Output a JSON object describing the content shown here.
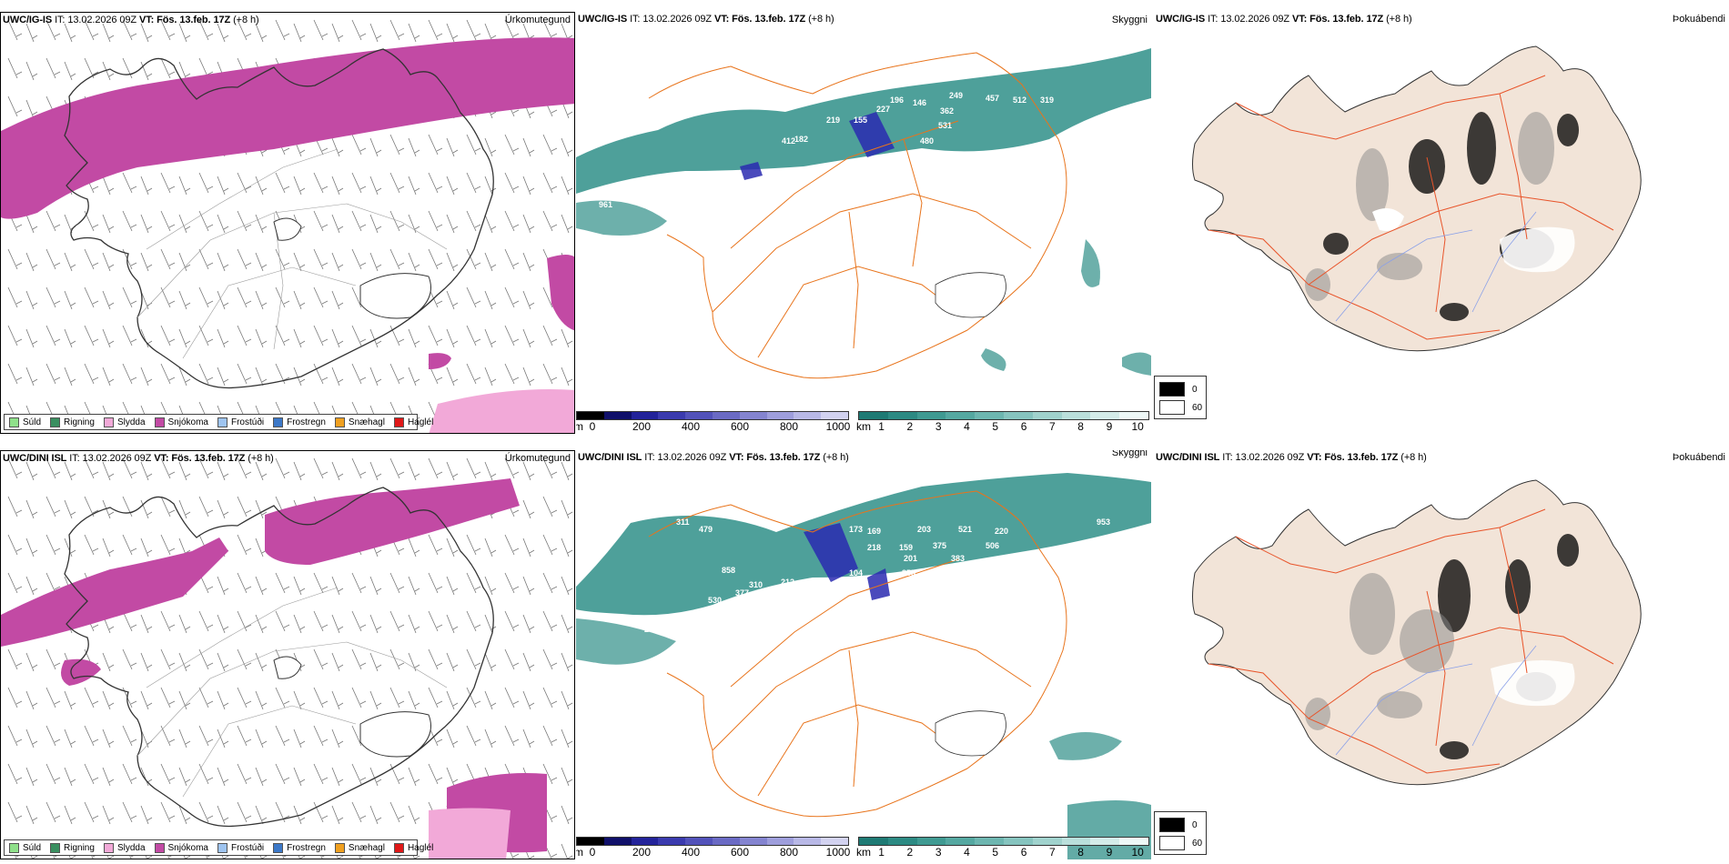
{
  "rows": [
    {
      "model": "UWC/IG-IS",
      "it_label": "IT:",
      "it_value": "13.02.2026 09Z",
      "vt_label": "VT:",
      "vt_value": "Fös. 13.feb. 17Z",
      "lead": "(+8 h)",
      "values": [
        {
          "t": "249"
        },
        {
          "t": "457"
        },
        {
          "t": "512"
        },
        {
          "t": "319"
        },
        {
          "t": "196"
        },
        {
          "t": "146"
        },
        {
          "t": "362"
        },
        {
          "t": "227"
        },
        {
          "t": "155"
        },
        {
          "t": "219"
        },
        {
          "t": "531"
        },
        {
          "t": "480"
        },
        {
          "t": "182"
        },
        {
          "t": "412"
        },
        {
          "t": "189"
        },
        {
          "t": "531"
        },
        {
          "t": "961"
        },
        {
          "t": "150"
        }
      ]
    },
    {
      "model": "UWC/DINI ISL",
      "it_label": "IT:",
      "it_value": "13.02.2026 09Z",
      "vt_label": "VT:",
      "vt_value": "Fös. 13.feb. 17Z",
      "lead": "(+8 h)",
      "values": [
        {
          "t": "623"
        },
        {
          "t": "311"
        },
        {
          "t": "479"
        },
        {
          "t": "173"
        },
        {
          "t": "169"
        },
        {
          "t": "203"
        },
        {
          "t": "521"
        },
        {
          "t": "220"
        },
        {
          "t": "218"
        },
        {
          "t": "159"
        },
        {
          "t": "375"
        },
        {
          "t": "201"
        },
        {
          "t": "383"
        },
        {
          "t": "506"
        },
        {
          "t": "355"
        },
        {
          "t": "104"
        },
        {
          "t": "858"
        },
        {
          "t": "212"
        },
        {
          "t": "310"
        },
        {
          "t": "377"
        },
        {
          "t": "530"
        },
        {
          "t": "291"
        },
        {
          "t": "132"
        },
        {
          "t": "953"
        }
      ]
    }
  ],
  "panel_titles": {
    "precip": "Úrkomutegund",
    "ceiling": "Skyggni",
    "fog": "Þokuábendi"
  },
  "precip_legend": [
    {
      "label": "Súld",
      "color": "#8fe08a"
    },
    {
      "label": "Rigning",
      "color": "#3a8f60"
    },
    {
      "label": "Slydda",
      "color": "#f2a9d8"
    },
    {
      "label": "Snjókoma",
      "color": "#c24aa4"
    },
    {
      "label": "Frostúði",
      "color": "#9ec4f0"
    },
    {
      "label": "Frostregn",
      "color": "#3c78c8"
    },
    {
      "label": "Snæhagl",
      "color": "#f0a020"
    },
    {
      "label": "Haglél",
      "color": "#e01818"
    }
  ],
  "ceiling_scale": {
    "unit": "m",
    "ticks": [
      "0",
      "200",
      "400",
      "600",
      "800",
      "1000"
    ],
    "colors": [
      "#000000",
      "#10106a",
      "#23239a",
      "#3a3aae",
      "#5252ba",
      "#6a6ac4",
      "#8484d0",
      "#9e9edc",
      "#b8b8e6",
      "#d2d2f0"
    ]
  },
  "visibility_scale": {
    "unit": "km",
    "ticks": [
      "1",
      "2",
      "3",
      "4",
      "5",
      "6",
      "7",
      "8",
      "9",
      "10"
    ],
    "colors": [
      "#1e7a74",
      "#2c8a83",
      "#3f9a92",
      "#55a8a1",
      "#6db6b0",
      "#86c4bf",
      "#a0d2cd",
      "#badfdb",
      "#d4ece9",
      "#eef8f7"
    ]
  },
  "fog_scale": {
    "items": [
      {
        "label": "0",
        "color": "#000000"
      },
      {
        "label": "60",
        "color": "#ffffff"
      }
    ]
  },
  "colors": {
    "snow": "#c24aa4",
    "teal": "#2f8f88",
    "low_ceiling": "#2a2ab0",
    "roads": "#e8741c",
    "land": "#f2e4d8",
    "road_red": "#e8542a",
    "rivers": "#8aa0e8"
  }
}
